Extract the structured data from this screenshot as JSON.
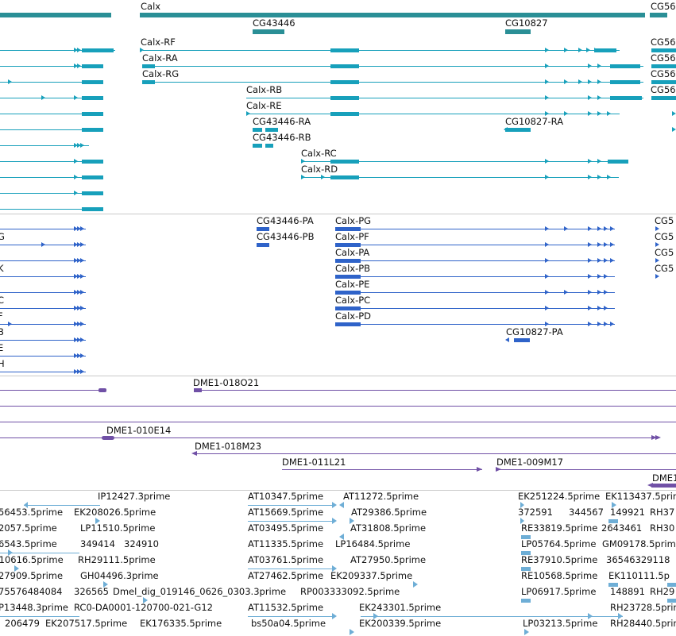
{
  "colors": {
    "gene": "#2a8f96",
    "gene_transcript": "#17a0bb",
    "protein": "#2f63c9",
    "clone": "#7050a6",
    "est": "#6eaed6",
    "separator": "#c9c9c9"
  },
  "genes": {
    "calx": "Calx",
    "cg43446": "CG43446",
    "cg10827": "CG10827",
    "cg56": "CG56"
  },
  "transcripts": {
    "calx_rf": "Calx-RF",
    "calx_ra": "Calx-RA",
    "calx_rg": "Calx-RG",
    "calx_rb": "Calx-RB",
    "calx_re": "Calx-RE",
    "cg43446_ra": "CG43446-RA",
    "cg43446_rb": "CG43446-RB",
    "cg10827_ra": "CG10827-RA",
    "calx_rc": "Calx-RC",
    "calx_rd": "Calx-RD",
    "cg56_1": "CG56",
    "cg56_2": "CG56",
    "cg56_3": "CG56",
    "cg56_4": "CG56"
  },
  "proteins": {
    "cg43446_pa": "CG43446-PA",
    "cg43446_pb": "CG43446-PB",
    "calx_pg": "Calx-PG",
    "calx_pf": "Calx-PF",
    "calx_pa": "Calx-PA",
    "calx_pb": "Calx-PB",
    "calx_pe": "Calx-PE",
    "calx_pc": "Calx-PC",
    "calx_pd": "Calx-PD",
    "cg10827_pa": "CG10827-PA",
    "cg5_1": "CG5",
    "cg5_2": "CG5",
    "cg5_3": "CG5",
    "cg5_4": "CG5",
    "left_g": "G",
    "left_k": "K",
    "left_c": "C",
    "left_f": "F",
    "left_b": "B",
    "left_e": "E",
    "left_h": "H"
  },
  "clones": {
    "c1": "DME1-018O21",
    "c2": "DME1-010E14",
    "c3": "DME1-018M23",
    "c4": "DME1-011L21",
    "c5": "DME1-009M17",
    "c6": "DME1"
  },
  "ests": {
    "r1": [
      "IP12427.3prime",
      "AT10347.5prime",
      "AT11272.5prime",
      "EK251224.5prime",
      "EK113437.5prime"
    ],
    "r2": [
      "56453.5prime",
      "EK208026.5prime",
      "AT15669.5prime",
      "AT29386.5prime",
      "372591",
      "344567",
      "149921",
      "RH37"
    ],
    "r3": [
      "2057.5prime",
      "LP11510.5prime",
      "AT03495.5prime",
      "AT31808.5prime",
      "RE33819.5prime",
      "2643461",
      "RH30"
    ],
    "r4": [
      "6543.5prime",
      "349414",
      "324910",
      "AT11335.5prime",
      "LP16484.5prime",
      "LP05764.5prime",
      "GM09178.5prime"
    ],
    "r5": [
      ".10616.5prime",
      "RH29111.5prime",
      "AT03761.5prime",
      "AT27950.5prime",
      "RE37910.5prime",
      "36546329118"
    ],
    "r6": [
      "27909.5prime",
      "GH04496.3prime",
      "AT27462.5prime",
      "EK209337.5prime",
      "RE10568.5prime",
      "EK110111.5p"
    ],
    "r7": [
      "75576484084",
      "326565",
      "Dmel_dig_019146_0626_0303.3prime",
      "RP003333092.5prime",
      "LP06917.5prime",
      "148891",
      "RH29"
    ],
    "r8": [
      "P13448.3prime",
      "RC0-DA0001-120700-021-G12",
      "AT11532.5prime",
      "EK243301.5prime",
      "RH23728.5prime"
    ],
    "r9": [
      "206479",
      "EK207517.5prime",
      "EK176335.5prime",
      "bs50a04.5prime",
      "EK200339.5prime",
      "LP03213.5prime",
      "RH28440.5prime"
    ]
  }
}
